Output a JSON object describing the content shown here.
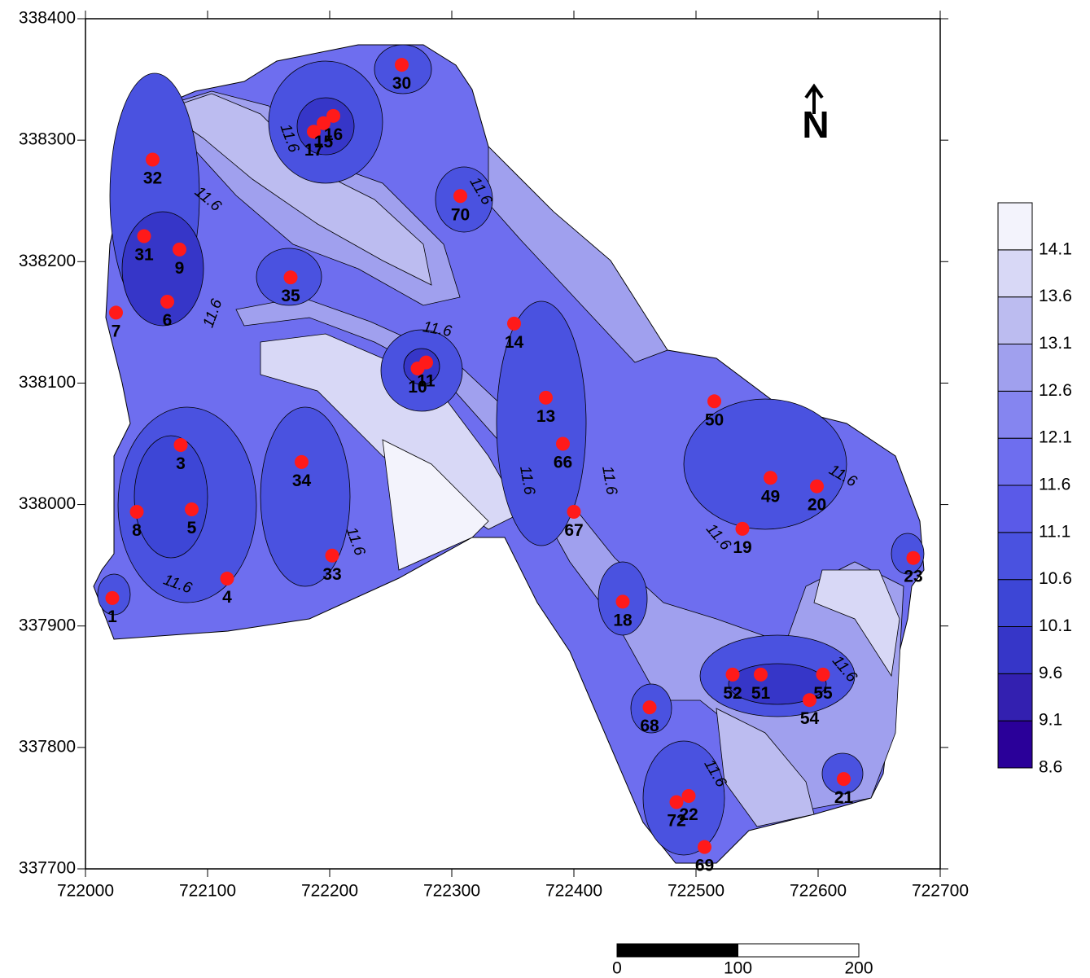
{
  "chart_data": {
    "type": "scatter",
    "xlim": [
      722000,
      722700
    ],
    "ylim": [
      337700,
      338400
    ],
    "xticks": [
      722000,
      722100,
      722200,
      722300,
      722400,
      722500,
      722600,
      722700
    ],
    "yticks": [
      337700,
      337800,
      337900,
      338000,
      338100,
      338200,
      338300,
      338400
    ],
    "grid": false,
    "point_color": "#ff1a1a",
    "labels": [
      "1",
      "3",
      "4",
      "5",
      "6",
      "7",
      "8",
      "9",
      "31",
      "32",
      "35",
      "34",
      "33",
      "17",
      "16",
      "15",
      "30",
      "70",
      "10",
      "11",
      "14",
      "13",
      "66",
      "67",
      "18",
      "68",
      "72",
      "22",
      "69",
      "50",
      "49",
      "20",
      "19",
      "23",
      "52",
      "51",
      "55",
      "54",
      "21"
    ],
    "x": [
      722022,
      722078,
      722116,
      722087,
      722067,
      722025,
      722042,
      722077,
      722048,
      722055,
      722168,
      722177,
      722202,
      722187,
      722203,
      722195,
      722259,
      722307,
      722272,
      722279,
      722351,
      722377,
      722391,
      722400,
      722440,
      722462,
      722484,
      722494,
      722507,
      722515,
      722561,
      722599,
      722538,
      722678,
      722530,
      722553,
      722604,
      722593,
      722621
    ],
    "y": [
      337923,
      338049,
      337939,
      337996,
      338167,
      338158,
      337994,
      338210,
      338221,
      338284,
      338187,
      338035,
      337958,
      338307,
      338320,
      338314,
      338362,
      338254,
      338112,
      338117,
      338149,
      338088,
      338050,
      337994,
      337920,
      337833,
      337755,
      337760,
      337718,
      338085,
      338022,
      338015,
      337980,
      337956,
      337860,
      337860,
      337860,
      337839,
      337774
    ],
    "contour_labels": [
      "11.6",
      "11.6",
      "11.6",
      "11.6",
      "11.6",
      "11.6",
      "11.6",
      "11.6",
      "11.6",
      "11.6",
      "11.6",
      "11.6",
      "11.6"
    ],
    "colorbar": {
      "lim": [
        8.6,
        14.6
      ],
      "ticks": [
        8.6,
        9.1,
        9.6,
        10.1,
        10.6,
        11.1,
        11.6,
        12.1,
        12.6,
        13.1,
        13.6,
        14.1
      ],
      "colors": [
        "#2a0099",
        "#3320b0",
        "#3636c8",
        "#3d46d6",
        "#4a52e0",
        "#5a5ae8",
        "#6e6eef",
        "#8585f0",
        "#a0a0ee",
        "#bcbcf0",
        "#d8d8f6",
        "#f3f3fc"
      ]
    },
    "north_label": "N",
    "scale_bar": {
      "ticks": [
        0,
        100,
        200
      ]
    }
  }
}
